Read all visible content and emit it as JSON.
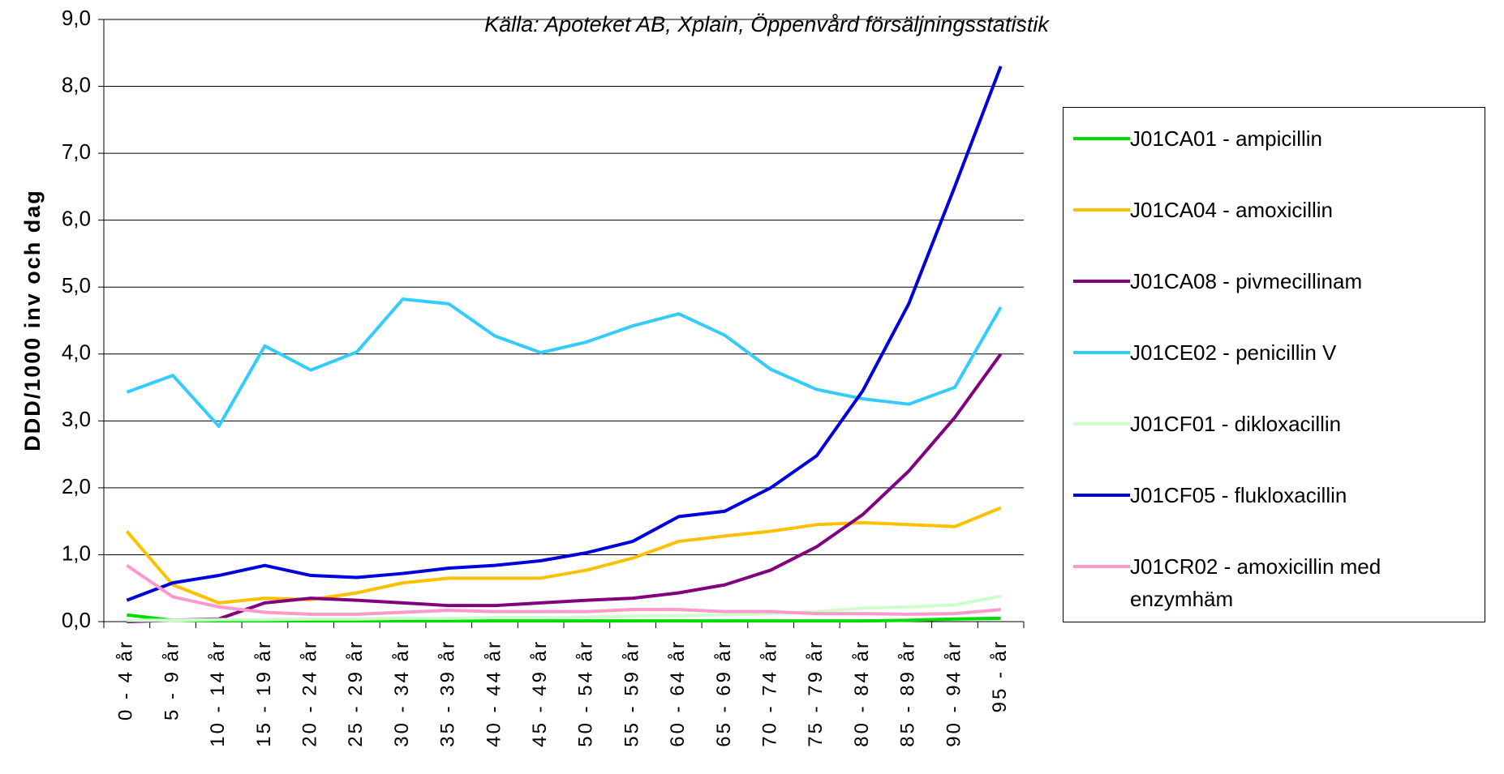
{
  "chart_data": {
    "type": "line",
    "title": "Källa: Apoteket AB, Xplain, Öppenvård försäljningsstatistik",
    "y_label": "DDD/1000 inv och dag",
    "categories": [
      "0 - 4 år",
      "5 - 9 år",
      "10 - 14 år",
      "15 - 19 år",
      "20 - 24 år",
      "25 - 29 år",
      "30 - 34 år",
      "35 - 39 år",
      "40 - 44 år",
      "45 - 49 år",
      "50 - 54 år",
      "55 - 59 år",
      "60 - 64 år",
      "65 - 69 år",
      "70 - 74 år",
      "75 - 79 år",
      "80 - 84 år",
      "85 - 89 år",
      "90 - 94 år",
      "95 - år"
    ],
    "series": [
      {
        "name": "J01CA01 - ampicillin",
        "color": "#00dd00",
        "values": [
          0.1,
          0.02,
          0.01,
          0.01,
          0.01,
          0.01,
          0.01,
          0.01,
          0.01,
          0.01,
          0.01,
          0.01,
          0.01,
          0.01,
          0.01,
          0.01,
          0.01,
          0.02,
          0.04,
          0.05
        ]
      },
      {
        "name": "J01CA04 - amoxicillin",
        "color": "#ffc000",
        "values": [
          1.35,
          0.55,
          0.28,
          0.35,
          0.33,
          0.43,
          0.58,
          0.65,
          0.65,
          0.65,
          0.77,
          0.95,
          1.2,
          1.28,
          1.35,
          1.45,
          1.48,
          1.45,
          1.42,
          1.7
        ]
      },
      {
        "name": "J01CA08 - pivmecillinam",
        "color": "#800080",
        "values": [
          0.0,
          0.02,
          0.04,
          0.28,
          0.35,
          0.32,
          0.28,
          0.24,
          0.24,
          0.28,
          0.32,
          0.35,
          0.43,
          0.55,
          0.77,
          1.12,
          1.6,
          2.25,
          3.05,
          4.0
        ]
      },
      {
        "name": "J01CE02 - penicillin V",
        "color": "#33ccff",
        "values": [
          3.43,
          3.68,
          2.92,
          4.12,
          3.76,
          4.03,
          4.82,
          4.75,
          4.27,
          4.02,
          4.18,
          4.42,
          4.6,
          4.28,
          3.77,
          3.47,
          3.33,
          3.25,
          3.5,
          4.7
        ]
      },
      {
        "name": "J01CF01 - dikloxacillin",
        "color": "#ccffcc",
        "values": [
          0.02,
          0.02,
          0.03,
          0.03,
          0.04,
          0.04,
          0.05,
          0.05,
          0.06,
          0.06,
          0.07,
          0.08,
          0.09,
          0.1,
          0.12,
          0.15,
          0.2,
          0.22,
          0.25,
          0.38
        ]
      },
      {
        "name": "J01CF05 - flukloxacillin",
        "color": "#0000dd",
        "values": [
          0.32,
          0.58,
          0.69,
          0.84,
          0.69,
          0.66,
          0.72,
          0.8,
          0.84,
          0.91,
          1.03,
          1.2,
          1.57,
          1.65,
          2.0,
          2.48,
          3.45,
          4.75,
          6.5,
          8.3
        ]
      },
      {
        "name": "J01CR02 - amoxicillin med enzymhäm",
        "color": "#ff99cc",
        "values": [
          0.84,
          0.37,
          0.22,
          0.14,
          0.11,
          0.11,
          0.14,
          0.17,
          0.15,
          0.15,
          0.15,
          0.18,
          0.18,
          0.15,
          0.15,
          0.12,
          0.12,
          0.11,
          0.12,
          0.18
        ]
      }
    ],
    "ylim": [
      0,
      9
    ],
    "yticks": [
      {
        "value": 0,
        "label": "0,0"
      },
      {
        "value": 1,
        "label": "1,0"
      },
      {
        "value": 2,
        "label": "2,0"
      },
      {
        "value": 3,
        "label": "3,0"
      },
      {
        "value": 4,
        "label": "4,0"
      },
      {
        "value": 5,
        "label": "5,0"
      },
      {
        "value": 6,
        "label": "6,0"
      },
      {
        "value": 7,
        "label": "7,0"
      },
      {
        "value": 8,
        "label": "8,0"
      },
      {
        "value": 9,
        "label": "9,0"
      }
    ],
    "grid": true,
    "legend": "right"
  }
}
